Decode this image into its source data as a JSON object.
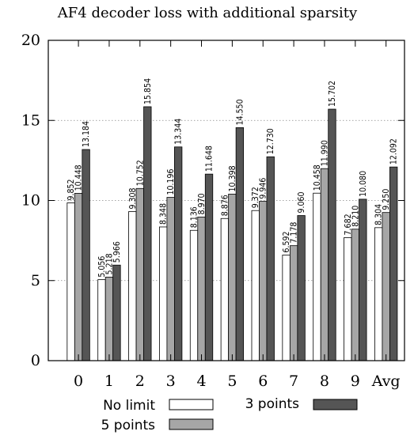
{
  "chart_data": {
    "type": "bar",
    "title": "AF4 decoder loss with additional sparsity",
    "xlabel": "",
    "ylabel": "",
    "categories": [
      "0",
      "1",
      "2",
      "3",
      "4",
      "5",
      "6",
      "7",
      "8",
      "9",
      "Avg"
    ],
    "ylim": [
      0,
      20
    ],
    "yticks": [
      "0",
      "5",
      "10",
      "15",
      "20"
    ],
    "grid": true,
    "legend": "bottom",
    "series": [
      {
        "name": "No limit",
        "color": "#ffffff",
        "values": [
          9.852,
          5.056,
          9.308,
          8.348,
          8.136,
          8.876,
          9.372,
          6.592,
          10.458,
          7.682,
          8.304
        ],
        "labels": [
          "9.852",
          "5.056",
          "9.308",
          "8.348",
          "8.136",
          "8.876",
          "9.372",
          "6.592",
          "10.458",
          "7.682",
          "8.304"
        ]
      },
      {
        "name": "5 points",
        "color": "#a6a6a6",
        "values": [
          10.448,
          5.218,
          10.752,
          10.196,
          8.97,
          10.398,
          9.946,
          7.178,
          11.99,
          8.21,
          9.25
        ],
        "labels": [
          "10.448",
          "5.218",
          "10.752",
          "10.196",
          "8.970",
          "10.398",
          "9.946",
          "7.178",
          "11.990",
          "8.210",
          "9.250"
        ]
      },
      {
        "name": "3 points",
        "color": "#555555",
        "values": [
          13.184,
          5.966,
          15.854,
          13.344,
          11.648,
          14.55,
          12.73,
          9.06,
          15.702,
          10.08,
          12.092
        ],
        "labels": [
          "13.184",
          "5.966",
          "15.854",
          "13.344",
          "11.648",
          "14.550",
          "12.730",
          "9.060",
          "15.702",
          "10.080",
          "12.092"
        ]
      }
    ]
  }
}
